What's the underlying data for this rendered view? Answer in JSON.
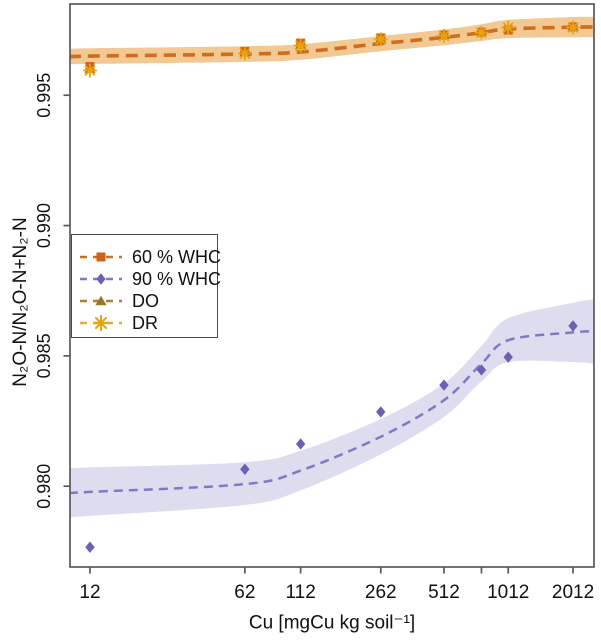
{
  "chart_data": {
    "type": "scatter",
    "title": "",
    "xlabel": "Cu [mgCu kg soil⁻¹]",
    "ylabel": "N₂O-N/N₂O-N+N₂-N",
    "x_scale": "log10",
    "x_values": [
      12,
      62,
      112,
      262,
      512,
      762,
      1012,
      2012
    ],
    "x_tick_labels": [
      "12",
      "62",
      "112",
      "262",
      "512",
      "",
      "1012",
      "2012"
    ],
    "xlim": [
      9.71,
      2513
    ],
    "ylim": [
      0.9769,
      0.9985
    ],
    "y_ticks": [
      0.98,
      0.985,
      0.99,
      0.995
    ],
    "y_tick_labels": [
      "0.980",
      "0.985",
      "0.990",
      "0.995"
    ],
    "grid": false,
    "series": [
      {
        "name": "60 % WHC",
        "marker": "square",
        "color": "#d2611a",
        "line_color": "#ce6d1e",
        "values": [
          0.9961,
          0.99668,
          0.997,
          0.9972,
          0.99731,
          0.99742,
          0.9975,
          0.99762
        ]
      },
      {
        "name": "90 % WHC",
        "marker": "diamond",
        "color": "#6c60b4",
        "line_color": "#8478c6",
        "values": [
          0.97766,
          0.98065,
          0.98162,
          0.98285,
          0.98388,
          0.98446,
          0.98495,
          0.98615
        ]
      },
      {
        "name": "DO",
        "marker": "triangle",
        "color": "#9e7428",
        "line_color": "#a9842e",
        "values": [
          0.99601,
          0.99665,
          0.99694,
          0.99716,
          0.99734,
          0.99746,
          0.99756,
          0.99764
        ]
      },
      {
        "name": "DR",
        "marker": "asterisk",
        "color": "#e6a50f",
        "line_color": "#eaa83c",
        "values": [
          0.99595,
          0.9966,
          0.9969,
          0.99714,
          0.99728,
          0.9974,
          0.9976,
          0.9976
        ]
      }
    ],
    "trends": [
      {
        "name": "dry-group-trend",
        "line_color": "#ce6d1e",
        "band_color": "#f2c893",
        "dash": [
          12,
          7
        ],
        "width": 3.6,
        "x": [
          9.71,
          12,
          62,
          112,
          262,
          512,
          762,
          1012,
          2012,
          2513
        ],
        "y": [
          0.99647,
          0.9965,
          0.99658,
          0.99666,
          0.99698,
          0.99722,
          0.9974,
          0.99754,
          0.99761,
          0.99762
        ],
        "upper": [
          0.99677,
          0.9968,
          0.99688,
          0.99696,
          0.99727,
          0.99752,
          0.99772,
          0.99789,
          0.998,
          0.99801
        ],
        "lower": [
          0.99617,
          0.9962,
          0.99628,
          0.99636,
          0.99669,
          0.99692,
          0.99708,
          0.99719,
          0.99722,
          0.99723
        ]
      },
      {
        "name": "90-whc-trend",
        "line_color": "#8478c6",
        "band_color": "#dedcef",
        "dash": [
          9,
          6
        ],
        "width": 2.5,
        "x": [
          9.71,
          12,
          62,
          112,
          262,
          512,
          762,
          1012,
          2012,
          2513
        ],
        "y": [
          0.97974,
          0.97978,
          0.98008,
          0.9806,
          0.9819,
          0.9833,
          0.9847,
          0.9856,
          0.9859,
          0.98594
        ],
        "upper": [
          0.98068,
          0.98072,
          0.98092,
          0.98136,
          0.98258,
          0.98394,
          0.98538,
          0.98644,
          0.98704,
          0.98718
        ],
        "lower": [
          0.9788,
          0.97886,
          0.97928,
          0.97984,
          0.98122,
          0.98266,
          0.98402,
          0.98476,
          0.98476,
          0.9847
        ]
      }
    ],
    "legend": {
      "position": "inside-left-middle",
      "entries": [
        {
          "label": "60 % WHC"
        },
        {
          "label": "90 % WHC"
        },
        {
          "label": "DO"
        },
        {
          "label": "DR"
        }
      ]
    }
  },
  "axes": {
    "border_color": "#595959",
    "tick_color": "#595959",
    "label_color": "#111111"
  }
}
